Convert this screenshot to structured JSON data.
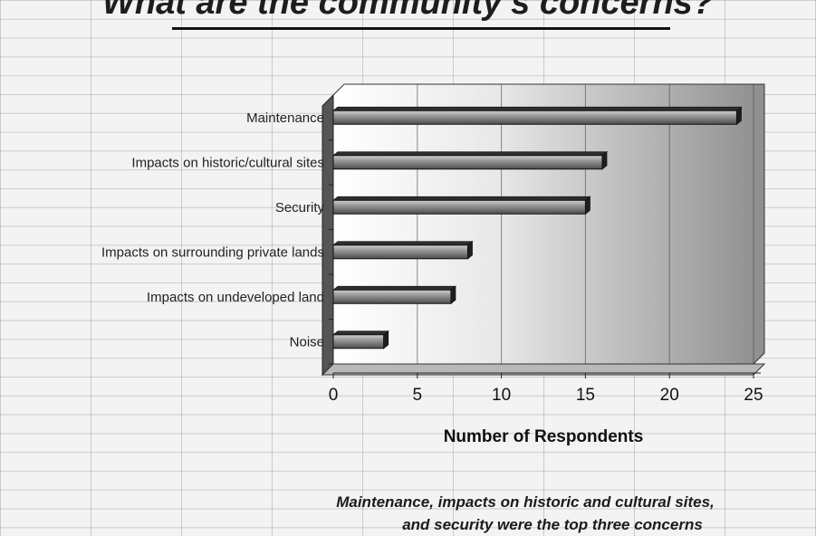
{
  "title": "What are the community’s concerns?",
  "caption": {
    "line1": "Maintenance, impacts on historic and cultural sites,",
    "line2": "and security were the top three concerns"
  },
  "chart_data": {
    "type": "bar",
    "orientation": "horizontal",
    "categories": [
      "Maintenance",
      "Impacts on historic/cultural sites",
      "Security",
      "Impacts on surrounding private lands",
      "Impacts on undeveloped land",
      "Noise"
    ],
    "values": [
      24,
      16,
      15,
      8,
      7,
      3
    ],
    "xlabel": "Number of Respondents",
    "ylabel": "",
    "xlim": [
      0,
      25
    ],
    "xticks": [
      0,
      5,
      10,
      15,
      20,
      25
    ],
    "grid": true,
    "bar_color": "#6b6b6b",
    "plot_background": "#9a9a9a"
  }
}
